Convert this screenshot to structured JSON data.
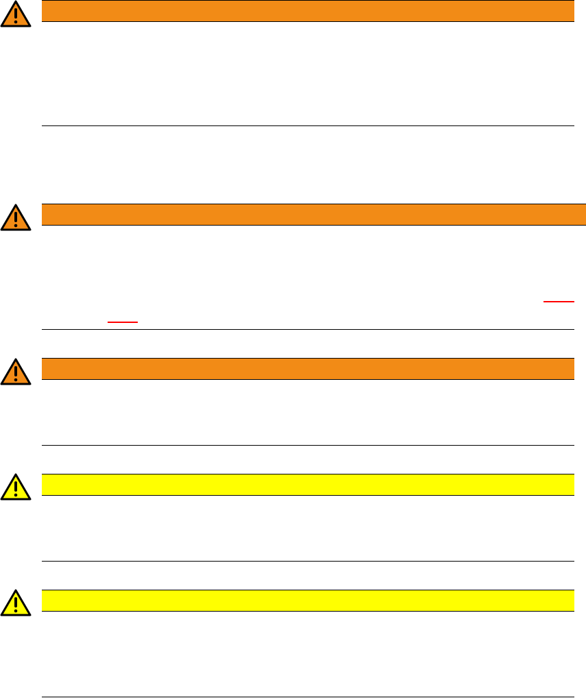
{
  "colors": {
    "danger": "#f28b16",
    "caution": "#ffff00",
    "link": "#ff0000"
  },
  "notices": [
    {
      "level": "danger",
      "icon": "warning-triangle-icon"
    },
    {
      "level": "danger",
      "icon": "warning-triangle-icon"
    },
    {
      "level": "danger",
      "icon": "warning-triangle-icon"
    },
    {
      "level": "caution",
      "icon": "warning-triangle-icon"
    },
    {
      "level": "caution",
      "icon": "warning-triangle-icon"
    }
  ]
}
